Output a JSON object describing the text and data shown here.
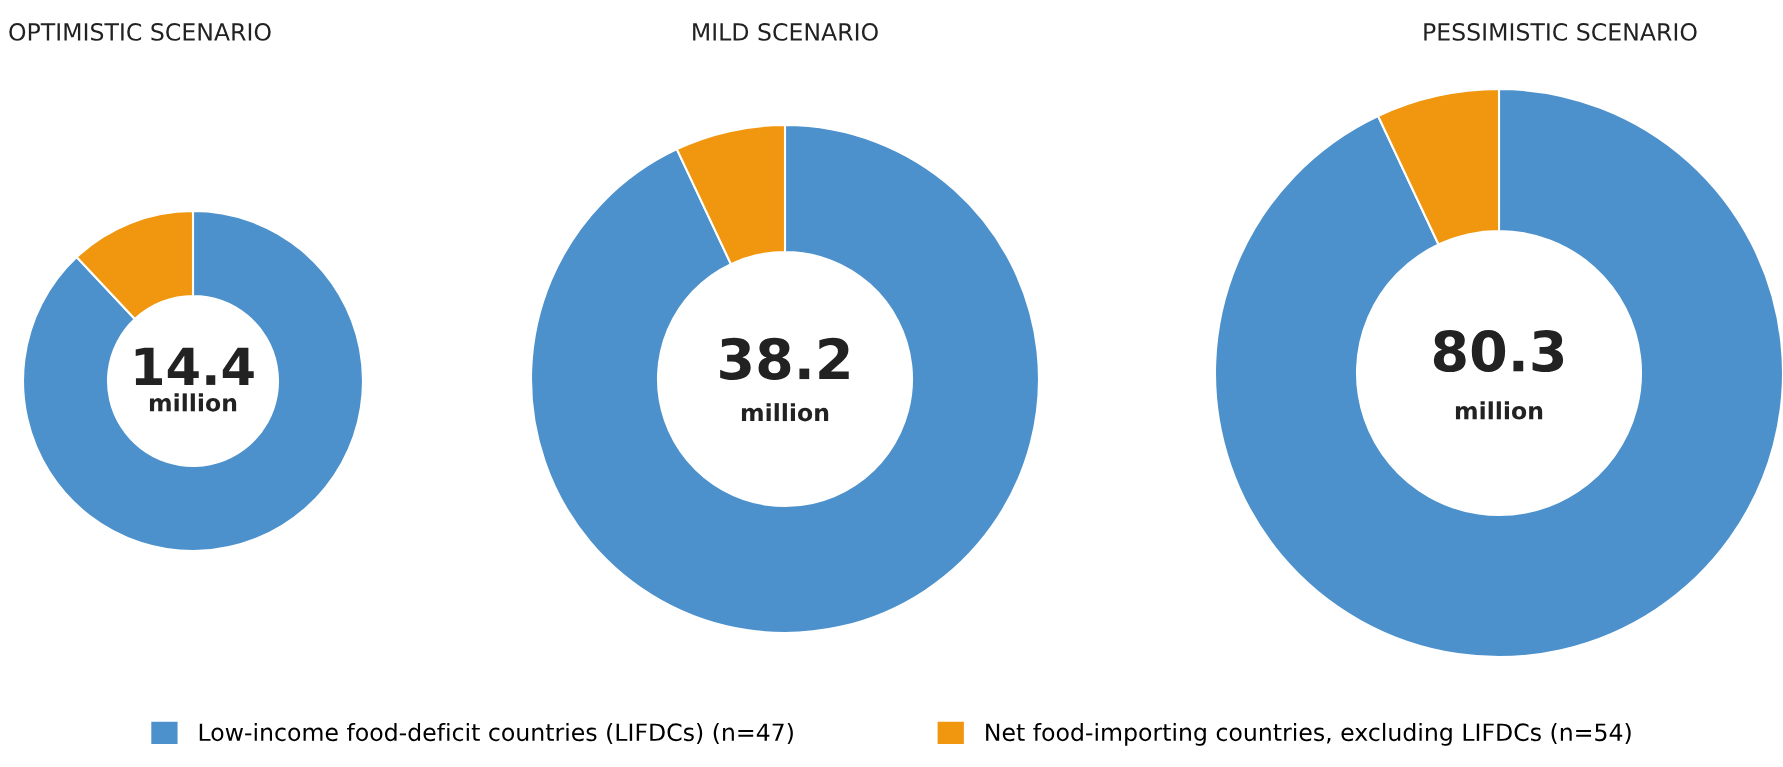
{
  "chart_data": [
    {
      "type": "donut",
      "title": "OPTIMISTIC SCENARIO",
      "categories": [
        "Low-income food-deficit countries (LIFDCs) (n=47)",
        "Net food-importing countries, excluding LIFDCs (n=54)"
      ],
      "values": [
        88,
        12
      ],
      "colors": [
        "#4d91cc",
        "#f0960f"
      ],
      "annotations": [
        "14.4",
        "million"
      ],
      "legend": "bottom"
    },
    {
      "type": "donut",
      "title": "MILD SCENARIO",
      "categories": [
        null,
        null
      ],
      "values": [
        93,
        7
      ],
      "colors": [
        "#4d91cc",
        "#f0960f"
      ],
      "annotations": [
        "38.2",
        "million"
      ]
    },
    {
      "type": "donut",
      "title": "PESSIMISTIC SCENARIO",
      "categories": [
        null,
        null
      ],
      "values": [
        93,
        7
      ],
      "colors": [
        "#4d91cc",
        "#f0960f"
      ],
      "annotations": [
        "80.3",
        "million"
      ]
    }
  ]
}
